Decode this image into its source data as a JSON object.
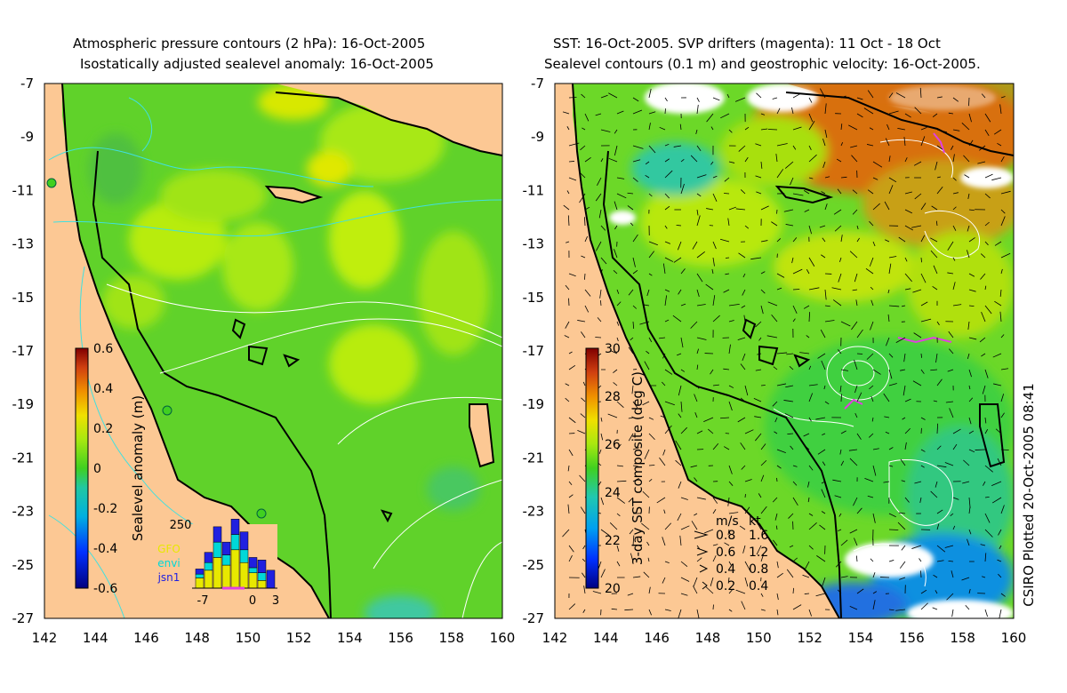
{
  "left_panel": {
    "title_line1": "Atmospheric pressure contours (2 hPa): 16-Oct-2005",
    "title_line2": "Isostatically adjusted sealevel anomaly: 16-Oct-2005",
    "colorbar_label": "Sealevel anomaly (m)",
    "colorbar_ticks": [
      "0.6",
      "0.4",
      "0.2",
      "0",
      "-0.2",
      "-0.4",
      "-0.6"
    ],
    "colorbar_range": [
      -0.6,
      0.6
    ],
    "inset": {
      "ymax_label": "250",
      "legend": [
        {
          "name": "GFO",
          "color": "#e8e800"
        },
        {
          "name": "envi",
          "color": "#00d8d8"
        },
        {
          "name": "jsn1",
          "color": "#2020e0"
        }
      ],
      "x_ticks": [
        "-7",
        "0",
        "3"
      ],
      "bars": [
        {
          "x": -7,
          "values": [
            40,
            15,
            20
          ]
        },
        {
          "x": -6,
          "values": [
            70,
            30,
            40
          ]
        },
        {
          "x": -5,
          "values": [
            120,
            60,
            60
          ]
        },
        {
          "x": -4,
          "values": [
            90,
            40,
            50
          ]
        },
        {
          "x": -3,
          "values": [
            150,
            60,
            60
          ]
        },
        {
          "x": -2,
          "values": [
            100,
            50,
            70
          ]
        },
        {
          "x": -1,
          "values": [
            60,
            20,
            40
          ]
        },
        {
          "x": 0,
          "values": [
            30,
            30,
            50
          ]
        },
        {
          "x": 1,
          "values": [
            0,
            0,
            70
          ]
        }
      ]
    }
  },
  "right_panel": {
    "title_line1": "SST: 16-Oct-2005. SVP drifters (magenta): 11 Oct - 18 Oct",
    "title_line2": "Sealevel contours (0.1 m) and geostrophic velocity: 16-Oct-2005.",
    "colorbar_label": "3-day SST composite (deg C)",
    "colorbar_ticks": [
      "30",
      "28",
      "26",
      "24",
      "22",
      "20"
    ],
    "colorbar_range": [
      20,
      30
    ],
    "velocity_legend": {
      "header_ms": "m/s",
      "header_kt": "kt",
      "rows": [
        {
          "ms": "0.8",
          "kt": "1.6"
        },
        {
          "ms": "0.6",
          "kt": "1.2"
        },
        {
          "ms": "0.4",
          "kt": "0.8"
        },
        {
          "ms": "0.2",
          "kt": "0.4"
        }
      ]
    }
  },
  "axes": {
    "lat_labels": [
      "-7",
      "-9",
      "-11",
      "-13",
      "-15",
      "-17",
      "-19",
      "-21",
      "-23",
      "-25",
      "-27"
    ],
    "lon_labels": [
      "142",
      "144",
      "146",
      "148",
      "150",
      "152",
      "154",
      "156",
      "158",
      "160"
    ]
  },
  "credit": "CSIRO Plotted 20-Oct-2005 08:41",
  "colors": {
    "land": "#fcc894",
    "ocean_green": "#60d22a",
    "ocean_yellowgreen": "#b8ec10",
    "ocean_orange": "#e89010",
    "contour_cyan": "#40e0e0",
    "drifter_magenta": "#e040e0"
  }
}
